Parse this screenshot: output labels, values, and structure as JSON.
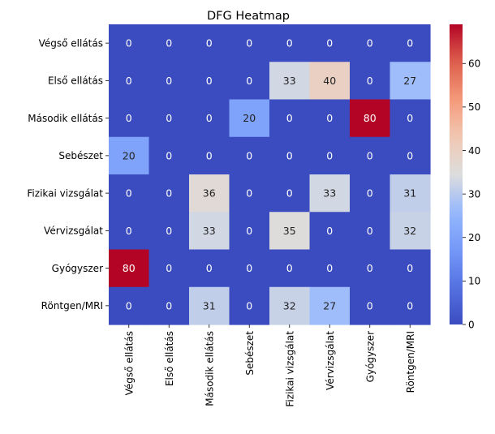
{
  "chart_data": {
    "type": "heatmap",
    "title": "DFG Heatmap",
    "xlabel": "",
    "ylabel": "",
    "row_labels": [
      "Végső ellátás",
      "Első ellátás",
      "Második ellátás",
      "Sebészet",
      "Fizikai vizsgálat",
      "Vérvizsgálat",
      "Gyógyszer",
      "Röntgen/MRI"
    ],
    "col_labels": [
      "Végső ellátás",
      "Első ellátás",
      "Második ellátás",
      "Sebészet",
      "Fizikai vizsgálat",
      "Vérvizsgálat",
      "Gyógyszer",
      "Röntgen/MRI"
    ],
    "values": [
      [
        0,
        0,
        0,
        0,
        0,
        0,
        0,
        0
      ],
      [
        0,
        0,
        0,
        0,
        33,
        40,
        0,
        27
      ],
      [
        0,
        0,
        0,
        20,
        0,
        0,
        80,
        0
      ],
      [
        20,
        0,
        0,
        0,
        0,
        0,
        0,
        0
      ],
      [
        0,
        0,
        36,
        0,
        0,
        33,
        0,
        31
      ],
      [
        0,
        0,
        33,
        0,
        35,
        0,
        0,
        32
      ],
      [
        80,
        0,
        0,
        0,
        0,
        0,
        0,
        0
      ],
      [
        0,
        0,
        31,
        0,
        32,
        27,
        0,
        0
      ]
    ],
    "colormap": "coolwarm",
    "colorbar": {
      "range": [
        0,
        69
      ],
      "ticks": [
        0,
        10,
        20,
        30,
        40,
        50,
        60
      ]
    },
    "annotated": true,
    "grid": false,
    "legend": "colorbar-right"
  }
}
